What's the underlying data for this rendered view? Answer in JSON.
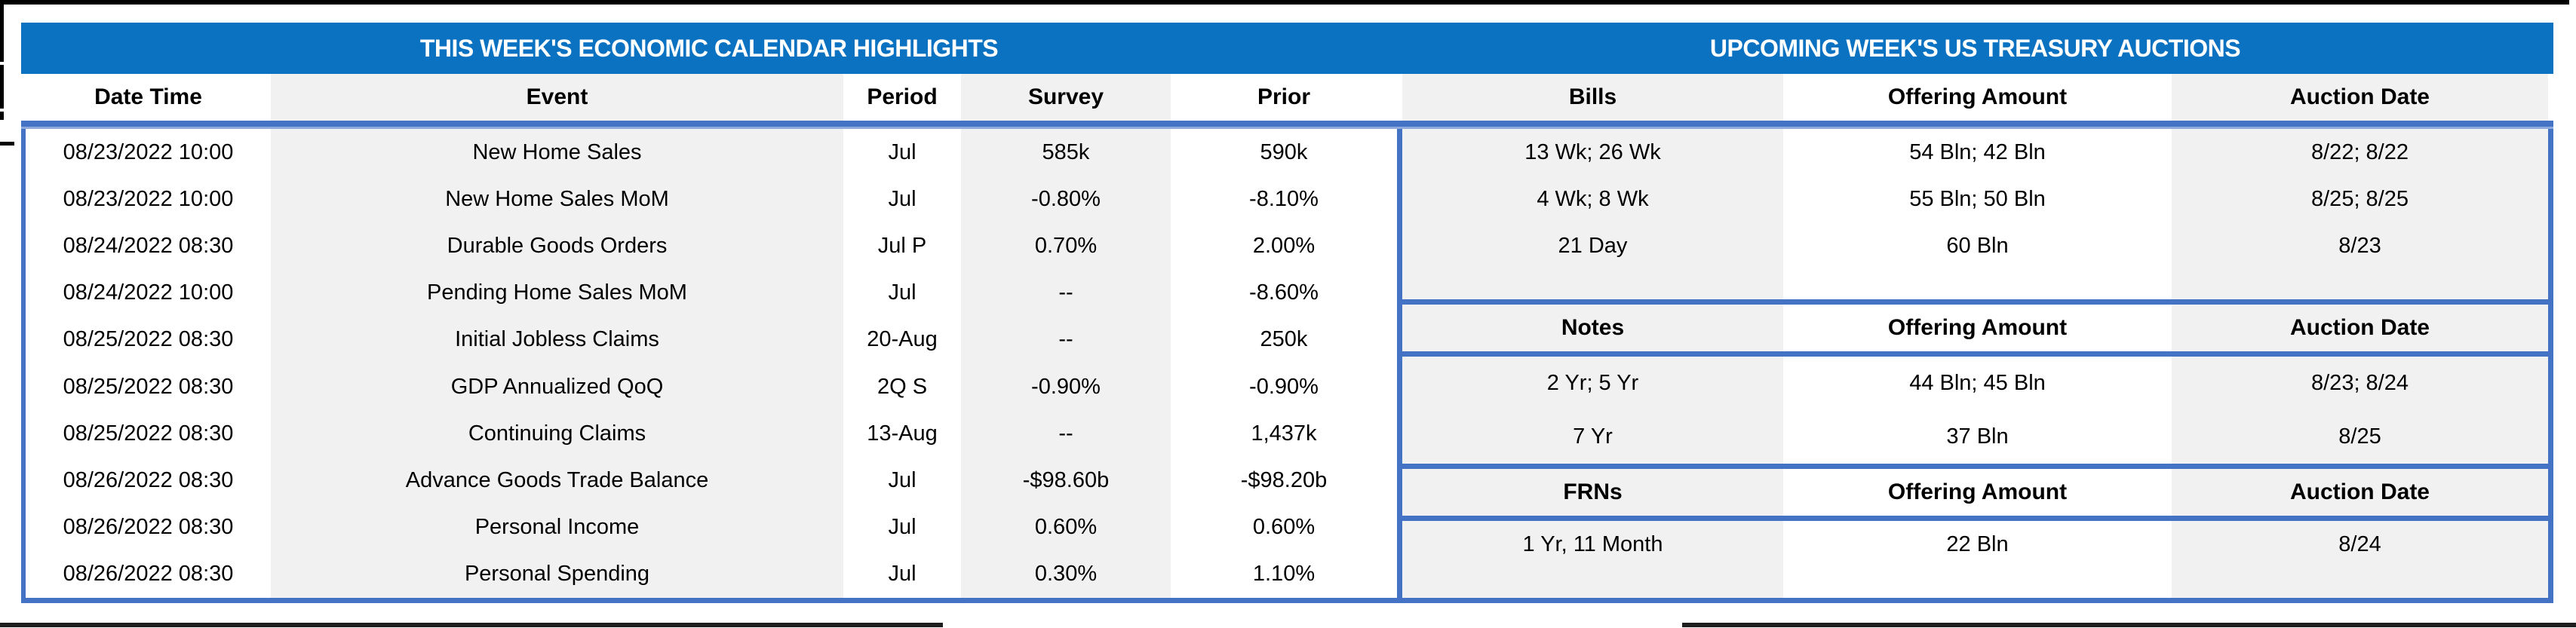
{
  "titles": {
    "economic_calendar": "THIS WEEK'S ECONOMIC CALENDAR HIGHLIGHTS",
    "treasury_auctions": "UPCOMING WEEK'S US TREASURY AUCTIONS"
  },
  "colors": {
    "title_bar": "#0B72C2",
    "table_border": "#4472C4",
    "separator_light": "#8EA9DB",
    "stripe": "#F1F1F1",
    "frame": "#000000"
  },
  "economic_calendar": {
    "columns": [
      "Date Time",
      "Event",
      "Period",
      "Survey",
      "Prior"
    ],
    "rows": [
      [
        "08/23/2022 10:00",
        "New Home Sales",
        "Jul",
        "585k",
        "590k"
      ],
      [
        "08/23/2022 10:00",
        "New Home Sales MoM",
        "Jul",
        "-0.80%",
        "-8.10%"
      ],
      [
        "08/24/2022 08:30",
        "Durable Goods Orders",
        "Jul P",
        "0.70%",
        "2.00%"
      ],
      [
        "08/24/2022 10:00",
        "Pending Home Sales MoM",
        "Jul",
        "--",
        "-8.60%"
      ],
      [
        "08/25/2022 08:30",
        "Initial Jobless Claims",
        "20-Aug",
        "--",
        "250k"
      ],
      [
        "08/25/2022 08:30",
        "GDP Annualized QoQ",
        "2Q S",
        "-0.90%",
        "-0.90%"
      ],
      [
        "08/25/2022 08:30",
        "Continuing Claims",
        "13-Aug",
        "--",
        "1,437k"
      ],
      [
        "08/26/2022 08:30",
        "Advance Goods Trade Balance",
        "Jul",
        "-$98.60b",
        "-$98.20b"
      ],
      [
        "08/26/2022 08:30",
        "Personal Income",
        "Jul",
        "0.60%",
        "0.60%"
      ],
      [
        "08/26/2022 08:30",
        "Personal Spending",
        "Jul",
        "0.30%",
        "1.10%"
      ]
    ]
  },
  "treasury_auctions": {
    "sections": [
      {
        "name": "bills",
        "columns": [
          "Bills",
          "Offering Amount",
          "Auction Date"
        ],
        "rows": [
          [
            "13 Wk; 26 Wk",
            "54 Bln; 42 Bln",
            "8/22; 8/22"
          ],
          [
            "4 Wk; 8 Wk",
            "55 Bln; 50 Bln",
            "8/25; 8/25"
          ],
          [
            "21 Day",
            "60 Bln",
            "8/23"
          ]
        ]
      },
      {
        "name": "notes",
        "columns": [
          "Notes",
          "Offering Amount",
          "Auction Date"
        ],
        "rows": [
          [
            "2 Yr; 5 Yr",
            "44 Bln; 45 Bln",
            "8/23; 8/24"
          ],
          [
            "7 Yr",
            "37 Bln",
            "8/25"
          ]
        ]
      },
      {
        "name": "frns",
        "columns": [
          "FRNs",
          "Offering Amount",
          "Auction Date"
        ],
        "rows": [
          [
            "1 Yr, 11 Month",
            "22 Bln",
            "8/24"
          ]
        ]
      }
    ]
  }
}
